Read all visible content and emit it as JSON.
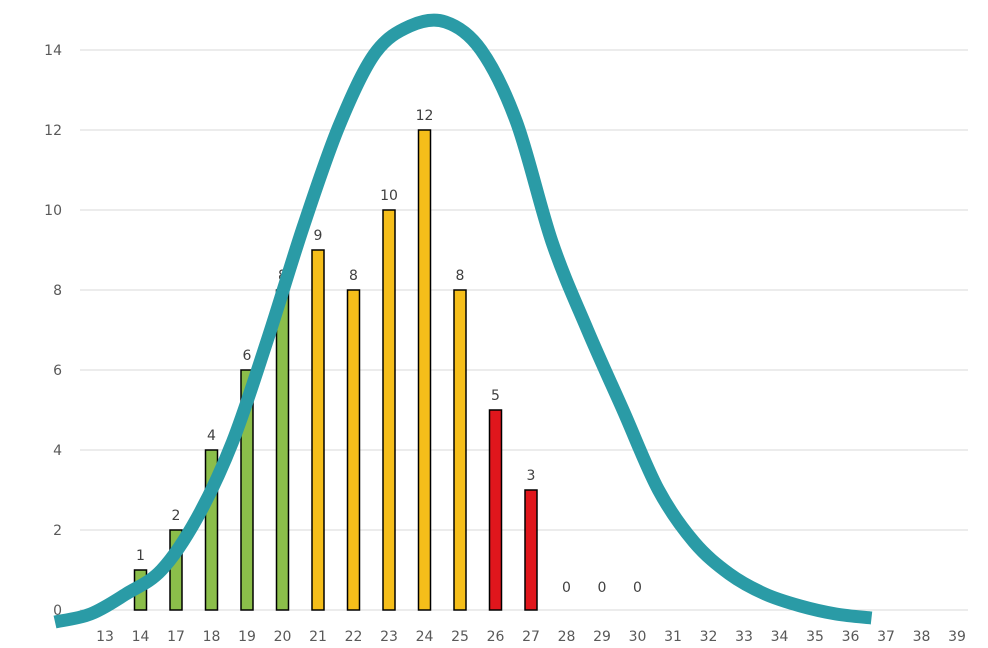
{
  "chart_data": {
    "type": "bar",
    "title": "",
    "xlabel": "",
    "ylabel": "",
    "ylim": [
      0,
      14
    ],
    "yticks": [
      0,
      2,
      4,
      6,
      8,
      10,
      12,
      14
    ],
    "grid": true,
    "categories": [
      "13",
      "14",
      "17",
      "18",
      "19",
      "20",
      "21",
      "22",
      "23",
      "24",
      "25",
      "26",
      "27",
      "28",
      "29",
      "30",
      "31",
      "32",
      "33",
      "34",
      "35",
      "36",
      "37",
      "38",
      "39"
    ],
    "values": [
      null,
      1,
      2,
      4,
      6,
      8,
      9,
      8,
      10,
      12,
      8,
      5,
      3,
      0,
      0,
      0,
      null,
      null,
      null,
      null,
      null,
      null,
      null,
      null,
      null
    ],
    "bar_colors": [
      null,
      "#8BBE4A",
      "#8BBE4A",
      "#8BBE4A",
      "#8BBE4A",
      "#8BBE4A",
      "#F5BE1A",
      "#F5BE1A",
      "#F5BE1A",
      "#F5BE1A",
      "#F5BE1A",
      "#E0161C",
      "#E0161C",
      null,
      null,
      null,
      null,
      null,
      null,
      null,
      null,
      null,
      null,
      null,
      null
    ],
    "bar_outline": "#000000",
    "curve": {
      "type": "normal-distribution-overlay",
      "color": "#2A9BA6",
      "points": [
        [
          0,
          -0.3
        ],
        [
          1,
          -0.1
        ],
        [
          2,
          0.4
        ],
        [
          3,
          1.0
        ],
        [
          4,
          2.3
        ],
        [
          5,
          4.2
        ],
        [
          6,
          6.8
        ],
        [
          7,
          9.6
        ],
        [
          8,
          12.1
        ],
        [
          9,
          13.9
        ],
        [
          10,
          14.6
        ],
        [
          11,
          14.7
        ],
        [
          12,
          14.0
        ],
        [
          13,
          12.2
        ],
        [
          14,
          9.2
        ],
        [
          15,
          7.0
        ],
        [
          16,
          5.0
        ],
        [
          17,
          3.0
        ],
        [
          18,
          1.7
        ],
        [
          19,
          0.9
        ],
        [
          20,
          0.4
        ],
        [
          21,
          0.1
        ],
        [
          22,
          -0.1
        ],
        [
          23,
          -0.2
        ]
      ]
    },
    "colors": {
      "grid": "#d9d9d9",
      "axis_text": "#595959",
      "green": "#8BBE4A",
      "yellow": "#F5BE1A",
      "red": "#E0161C",
      "curve": "#2A9BA6"
    }
  }
}
